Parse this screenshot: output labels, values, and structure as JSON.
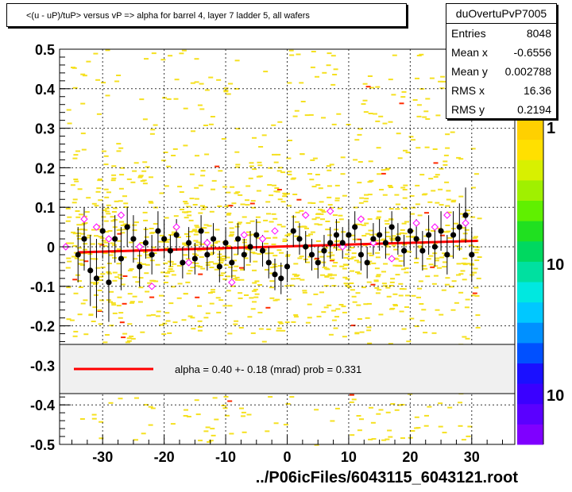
{
  "title": "<(u - uP)/tuP> versus   vP => alpha for barrel 4, layer 7 ladder 5, all wafers",
  "stats": {
    "name": "duOvertuPvP7005",
    "rows": [
      {
        "label": "Entries",
        "value": "8048"
      },
      {
        "label": "Mean x",
        "value": "-0.6556"
      },
      {
        "label": "Mean y",
        "value": "0.002788"
      },
      {
        "label": "RMS x",
        "value": "16.36"
      },
      {
        "label": "RMS y",
        "value": "0.2194"
      }
    ]
  },
  "footer": "../P06icFiles/6043115_6043121.root",
  "colors": {
    "scatter": "#f5e020",
    "scatter_hot": "#ff2a00",
    "fit": "#ff0000",
    "profile": "#000000",
    "profile_alt": "#ff00ff",
    "legend_bg": "#f0f0f0"
  },
  "chart_data": {
    "type": "scatter",
    "xlim": [
      -37,
      37
    ],
    "ylim": [
      -0.5,
      0.5
    ],
    "x_ticks": [
      -30,
      -20,
      -10,
      0,
      10,
      20,
      30
    ],
    "y_ticks": [
      0.5,
      0.4,
      0.3,
      0.2,
      0.1,
      0,
      -0.1,
      -0.2,
      -0.3,
      -0.4,
      -0.5
    ],
    "grid": true,
    "fit_line": {
      "x": [
        -34,
        31
      ],
      "y": [
        -0.014,
        0.015
      ]
    },
    "legend": {
      "text": "alpha =    0.40 +-  0.18 (mrad) prob = 0.331",
      "placement": "lower-center"
    },
    "colorbar_labels": [
      "1",
      "10",
      "10"
    ],
    "profile_points": [
      {
        "x": -34.0,
        "y": -0.02,
        "e": 0.07
      },
      {
        "x": -33.0,
        "y": 0.02,
        "e": 0.08
      },
      {
        "x": -32.0,
        "y": -0.06,
        "e": 0.09
      },
      {
        "x": -31.0,
        "y": -0.08,
        "e": 0.1
      },
      {
        "x": -30.0,
        "y": 0.04,
        "e": 0.07
      },
      {
        "x": -29.0,
        "y": -0.09,
        "e": 0.1
      },
      {
        "x": -28.0,
        "y": 0.02,
        "e": 0.06
      },
      {
        "x": -27.0,
        "y": -0.03,
        "e": 0.08
      },
      {
        "x": -26.0,
        "y": 0.05,
        "e": 0.05
      },
      {
        "x": -25.0,
        "y": 0.02,
        "e": 0.06
      },
      {
        "x": -24.0,
        "y": -0.05,
        "e": 0.05
      },
      {
        "x": -23.0,
        "y": 0.01,
        "e": 0.04
      },
      {
        "x": -22.0,
        "y": -0.02,
        "e": 0.05
      },
      {
        "x": -21.0,
        "y": 0.04,
        "e": 0.05
      },
      {
        "x": -20.0,
        "y": 0.02,
        "e": 0.05
      },
      {
        "x": -19.0,
        "y": -0.01,
        "e": 0.04
      },
      {
        "x": -18.0,
        "y": 0.03,
        "e": 0.04
      },
      {
        "x": -17.0,
        "y": -0.04,
        "e": 0.04
      },
      {
        "x": -16.0,
        "y": 0.01,
        "e": 0.04
      },
      {
        "x": -15.0,
        "y": -0.03,
        "e": 0.04
      },
      {
        "x": -14.0,
        "y": 0.04,
        "e": 0.04
      },
      {
        "x": -13.0,
        "y": -0.02,
        "e": 0.04
      },
      {
        "x": -12.0,
        "y": 0.02,
        "e": 0.04
      },
      {
        "x": -11.0,
        "y": -0.05,
        "e": 0.04
      },
      {
        "x": -10.0,
        "y": 0.01,
        "e": 0.04
      },
      {
        "x": -9.0,
        "y": -0.04,
        "e": 0.04
      },
      {
        "x": -8.0,
        "y": 0.02,
        "e": 0.04
      },
      {
        "x": -7.0,
        "y": -0.02,
        "e": 0.04
      },
      {
        "x": -6.0,
        "y": 0.0,
        "e": 0.04
      },
      {
        "x": -5.0,
        "y": 0.03,
        "e": 0.04
      },
      {
        "x": -4.0,
        "y": -0.01,
        "e": 0.04
      },
      {
        "x": -3.0,
        "y": -0.04,
        "e": 0.04
      },
      {
        "x": -2.0,
        "y": -0.07,
        "e": 0.04
      },
      {
        "x": -1.0,
        "y": -0.08,
        "e": 0.04
      },
      {
        "x": 0.0,
        "y": -0.05,
        "e": 0.04
      },
      {
        "x": 1.0,
        "y": 0.04,
        "e": 0.04
      },
      {
        "x": 2.0,
        "y": 0.02,
        "e": 0.04
      },
      {
        "x": 3.0,
        "y": 0.0,
        "e": 0.04
      },
      {
        "x": 4.0,
        "y": -0.02,
        "e": 0.04
      },
      {
        "x": 5.0,
        "y": -0.04,
        "e": 0.04
      },
      {
        "x": 6.0,
        "y": -0.01,
        "e": 0.04
      },
      {
        "x": 7.0,
        "y": 0.01,
        "e": 0.04
      },
      {
        "x": 8.0,
        "y": 0.03,
        "e": 0.04
      },
      {
        "x": 9.0,
        "y": 0.01,
        "e": 0.04
      },
      {
        "x": 10.0,
        "y": 0.03,
        "e": 0.04
      },
      {
        "x": 11.0,
        "y": 0.05,
        "e": 0.04
      },
      {
        "x": 12.0,
        "y": -0.02,
        "e": 0.04
      },
      {
        "x": 13.0,
        "y": -0.04,
        "e": 0.04
      },
      {
        "x": 14.0,
        "y": 0.02,
        "e": 0.04
      },
      {
        "x": 15.0,
        "y": 0.03,
        "e": 0.04
      },
      {
        "x": 16.0,
        "y": 0.01,
        "e": 0.04
      },
      {
        "x": 17.0,
        "y": 0.05,
        "e": 0.04
      },
      {
        "x": 18.0,
        "y": 0.02,
        "e": 0.04
      },
      {
        "x": 19.0,
        "y": -0.01,
        "e": 0.04
      },
      {
        "x": 20.0,
        "y": 0.04,
        "e": 0.05
      },
      {
        "x": 21.0,
        "y": 0.02,
        "e": 0.05
      },
      {
        "x": 22.0,
        "y": -0.01,
        "e": 0.05
      },
      {
        "x": 23.0,
        "y": 0.03,
        "e": 0.05
      },
      {
        "x": 24.0,
        "y": 0.0,
        "e": 0.05
      },
      {
        "x": 25.0,
        "y": 0.04,
        "e": 0.05
      },
      {
        "x": 26.0,
        "y": -0.02,
        "e": 0.05
      },
      {
        "x": 27.0,
        "y": 0.03,
        "e": 0.06
      },
      {
        "x": 28.0,
        "y": 0.05,
        "e": 0.06
      },
      {
        "x": 29.0,
        "y": 0.08,
        "e": 0.07
      },
      {
        "x": 30.0,
        "y": -0.02,
        "e": 0.07
      }
    ],
    "profile_alt_points": [
      {
        "x": -36.0,
        "y": 0.0
      },
      {
        "x": -33.0,
        "y": 0.07
      },
      {
        "x": -31.0,
        "y": 0.05
      },
      {
        "x": -29.0,
        "y": 0.02
      },
      {
        "x": -27.0,
        "y": 0.08
      },
      {
        "x": -24.0,
        "y": 0.0
      },
      {
        "x": -22.0,
        "y": -0.1
      },
      {
        "x": -18.0,
        "y": 0.05
      },
      {
        "x": -16.0,
        "y": -0.04
      },
      {
        "x": -13.0,
        "y": 0.01
      },
      {
        "x": -9.0,
        "y": -0.09
      },
      {
        "x": -7.0,
        "y": 0.03
      },
      {
        "x": -4.0,
        "y": 0.02
      },
      {
        "x": -2.0,
        "y": 0.04
      },
      {
        "x": 3.0,
        "y": 0.08
      },
      {
        "x": 7.0,
        "y": 0.09
      },
      {
        "x": 9.0,
        "y": 0.0
      },
      {
        "x": 12.0,
        "y": 0.07
      },
      {
        "x": 14.0,
        "y": 0.01
      },
      {
        "x": 17.0,
        "y": -0.03
      },
      {
        "x": 21.0,
        "y": 0.06
      },
      {
        "x": 24.0,
        "y": 0.05
      },
      {
        "x": 26.0,
        "y": 0.08
      },
      {
        "x": 29.0,
        "y": 0.06
      }
    ]
  }
}
